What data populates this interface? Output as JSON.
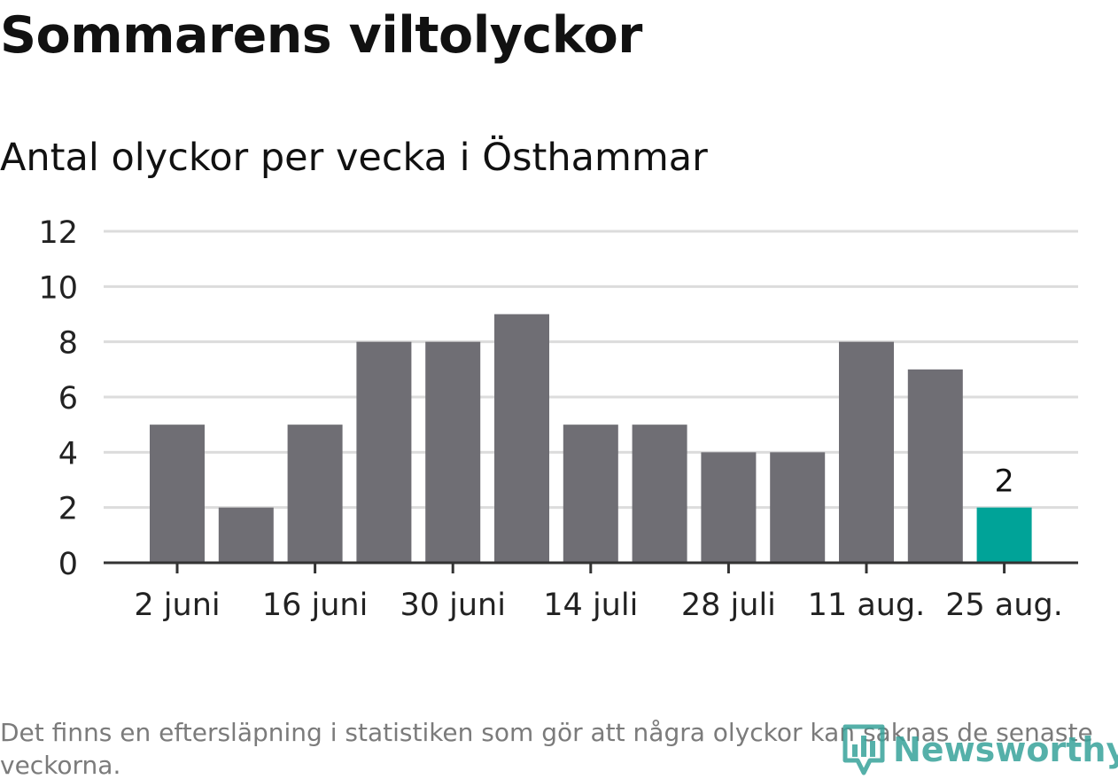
{
  "title": "Sommarens viltolyckor",
  "subtitle": "Antal olyckor per vecka i Östhammar",
  "footnote": "Det finns en eftersläpning i statistiken som gör att några olyckor kan saknas de senaste veckorna.",
  "logo_text": "Newsworthy",
  "colors": {
    "bar": "#6f6e74",
    "highlight": "#00a398",
    "grid": "#dcdcdc",
    "axis": "#333333",
    "tick_label": "#222222",
    "logo": "#38a39b"
  },
  "chart_data": {
    "type": "bar",
    "values": [
      5,
      2,
      5,
      8,
      8,
      9,
      5,
      5,
      4,
      4,
      8,
      7,
      2
    ],
    "highlight_index": 12,
    "x_tick_labels": [
      "2 juni",
      "16 juni",
      "30 juni",
      "14 juli",
      "28 juli",
      "11 aug.",
      "25 aug."
    ],
    "x_tick_bar_indices": [
      0,
      2,
      4,
      6,
      8,
      10,
      12
    ],
    "y_ticks": [
      0,
      2,
      4,
      6,
      8,
      10,
      12
    ],
    "ylim": [
      0,
      12
    ],
    "data_labels": [
      {
        "index": 12,
        "text": "2"
      }
    ],
    "grid": true,
    "legend": "none"
  }
}
